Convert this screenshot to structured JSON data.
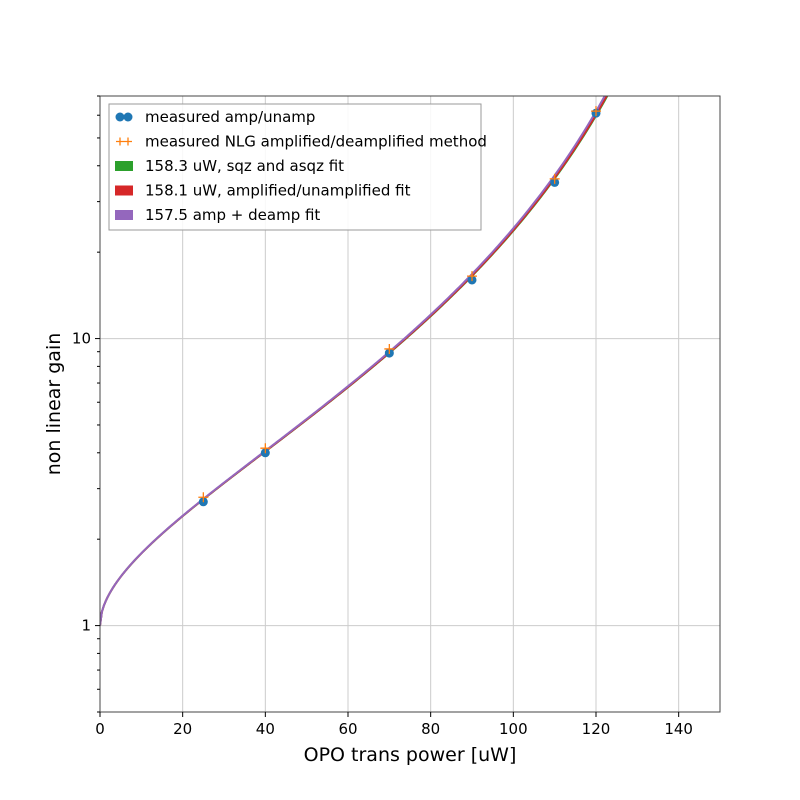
{
  "chart_data": {
    "type": "line",
    "title": "",
    "xlabel": "OPO trans power [uW]",
    "ylabel": "non linear gain",
    "xlim": [
      0,
      150
    ],
    "ylim": [
      0.5,
      70
    ],
    "yscale": "log",
    "grid": true,
    "legend_position": "upper-left",
    "x_ticks": [
      0,
      20,
      40,
      60,
      80,
      100,
      120,
      140
    ],
    "x_tick_labels": [
      "0",
      "20",
      "40",
      "60",
      "80",
      "100",
      "120",
      "140"
    ],
    "y_ticks": [
      1,
      10
    ],
    "y_tick_labels": [
      "1",
      "10"
    ],
    "series": [
      {
        "name": "measured amp/unamp",
        "kind": "scatter-dot",
        "color": "#1f77b4",
        "x": [
          25,
          40,
          70,
          90,
          110,
          120
        ],
        "y": [
          2.7,
          4.0,
          8.9,
          16.0,
          35.0,
          61.0
        ]
      },
      {
        "name": "measured NLG amplified/deamplified method",
        "kind": "scatter-plus",
        "color": "#ff7f0e",
        "x": [
          25,
          40,
          70,
          90,
          110,
          120
        ],
        "y": [
          2.8,
          4.15,
          9.2,
          16.5,
          36.0,
          62.0
        ]
      },
      {
        "name": "158.3 uW, sqz and asqz fit",
        "kind": "line",
        "color": "#2ca02c",
        "threshold": 158.3
      },
      {
        "name": "158.1 uW, amplified/unamplified fit",
        "kind": "line",
        "color": "#d62728",
        "threshold": 158.1
      },
      {
        "name": "157.5  amp + deamp fit",
        "kind": "line",
        "color": "#9467bd",
        "threshold": 157.5
      }
    ]
  }
}
